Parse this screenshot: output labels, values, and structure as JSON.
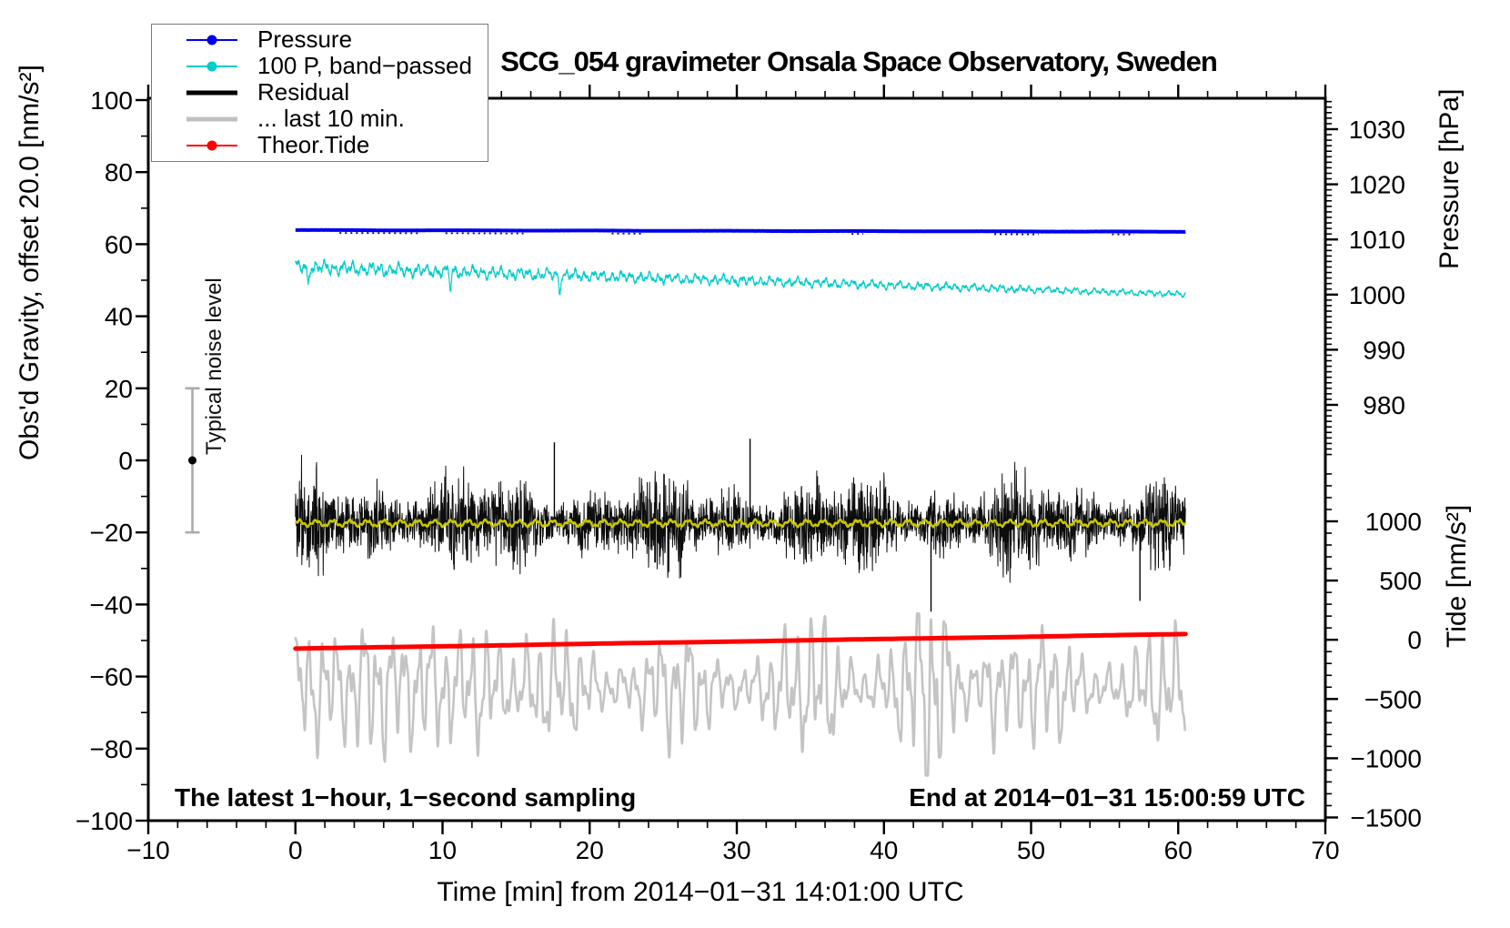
{
  "title": "SCG_054 gravimeter Onsala Space Observatory, Sweden",
  "annotations": {
    "sampling_note": "The latest 1−hour, 1−second sampling",
    "end_note": "End at 2014−01−31 15:00:59 UTC",
    "noise_marker_label": "Typical noise level"
  },
  "axes": {
    "x": {
      "label": "Time [min] from 2014−01−31 14:01:00 UTC",
      "min": -10,
      "max": 70,
      "major_ticks": [
        -10,
        0,
        10,
        20,
        30,
        40,
        50,
        60,
        70
      ],
      "minor_step": 2
    },
    "gravity": {
      "label": "Obs'd Gravity, offset 20.0 [nm/s²]",
      "min": -100,
      "max": 100,
      "major_ticks": [
        100,
        80,
        60,
        40,
        20,
        0,
        -20,
        -40,
        -60,
        -80,
        -100
      ],
      "minor_step": 10
    },
    "pressure": {
      "label": "Pressure [hPa]",
      "major_ticks": [
        1030,
        1020,
        1010,
        1000,
        990,
        980
      ],
      "minor_step": 1
    },
    "tide": {
      "label": "Tide [nm/s²]",
      "major_ticks": [
        1000,
        500,
        0,
        -500,
        -1000,
        -1500
      ],
      "minor_step": 100
    }
  },
  "legend": {
    "items": [
      {
        "label": "Pressure",
        "color": "#0000EE",
        "thick": false,
        "marker": true
      },
      {
        "label": "100 P, band−passed",
        "color": "#00CCCC",
        "thick": false,
        "marker": true
      },
      {
        "label": "Residual",
        "color": "#000000",
        "thick": true,
        "marker": false
      },
      {
        "label": "... last 10 min.",
        "color": "#C0C0C0",
        "thick": true,
        "marker": false
      },
      {
        "label": "Theor.Tide",
        "color": "#FF0000",
        "thick": true,
        "marker": true
      }
    ]
  },
  "chart_data": {
    "type": "line",
    "title": "SCG_054 gravimeter Onsala Space Observatory, Sweden",
    "x_range_min": [
      0,
      60.5
    ],
    "grid": false,
    "series": [
      {
        "name": "Pressure",
        "axis": "pressure",
        "unit": "hPa",
        "color": "#0000EE",
        "width": 4,
        "approx_points": [
          [
            0,
            1011.7
          ],
          [
            20,
            1011.6
          ],
          [
            40,
            1011.5
          ],
          [
            60.5,
            1011.4
          ]
        ],
        "dark_fleck_color": "#000099",
        "dark_segments_min": [
          [
            3.0,
            8.5
          ],
          [
            10.2,
            15.5
          ],
          [
            21.5,
            23.5
          ],
          [
            37.8,
            38.6
          ],
          [
            47.5,
            50.5
          ],
          [
            55.5,
            57.0
          ]
        ]
      },
      {
        "name": "100 P, band−passed",
        "axis": "gravity",
        "color": "#00CCCC",
        "width": 1.2,
        "trend_start": 53.7,
        "trend_end": 46.1,
        "amplitude_start": 2.2,
        "amplitude_end": 0.9,
        "down_spikes_min": [
          0.85,
          10.55,
          17.95
        ],
        "down_spike_depth": 4.8
      },
      {
        "name": "Residual",
        "axis": "gravity",
        "color": "#000000",
        "width": 1,
        "center": -17.3,
        "typical_range": [
          -31,
          -4
        ],
        "extreme_spikes": [
          [
            43.2,
            -42
          ],
          [
            57.4,
            -39
          ],
          [
            30.9,
            6
          ],
          [
            17.6,
            5
          ]
        ]
      },
      {
        "name": "Residual smoothed",
        "axis": "gravity",
        "color": "#C8C800",
        "width": 2.4,
        "center": -17.45,
        "amplitude": 0.9
      },
      {
        "name": "... last 10 min.",
        "axis": "gravity",
        "color": "#C4C4C4",
        "width": 2.6,
        "center": -63,
        "typical_range": [
          -86,
          -43
        ],
        "envelope_bumps_min": [
          5.3,
          12.8,
          36.0,
          43.1,
          47.5
        ]
      },
      {
        "name": "Theor.Tide",
        "axis": "tide",
        "unit": "nm/s²",
        "color": "#FF0000",
        "width": 5,
        "approx_points": [
          [
            0,
            -75
          ],
          [
            60.5,
            48
          ]
        ]
      }
    ],
    "noise_marker": {
      "x_min": -7,
      "center_gravity": 0,
      "half_range": 20,
      "bar_color": "#ABABAB",
      "dot_color": "#000000"
    }
  }
}
